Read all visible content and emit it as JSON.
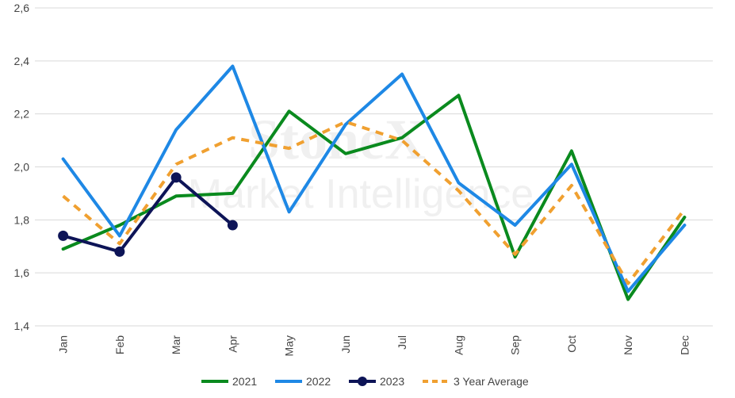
{
  "watermark": {
    "brand": "StoneX",
    "tagline": "Market Intelligence"
  },
  "chart_data": {
    "type": "line",
    "categories": [
      "Jan",
      "Feb",
      "Mar",
      "Apr",
      "May",
      "Jun",
      "Jul",
      "Aug",
      "Sep",
      "Oct",
      "Nov",
      "Dec"
    ],
    "ylim": [
      1.4,
      2.6
    ],
    "yticks": [
      "1,4",
      "1,6",
      "1,8",
      "2,0",
      "2,2",
      "2,4",
      "2,6"
    ],
    "grid": true,
    "legend_position": "bottom",
    "series": [
      {
        "name": "2021",
        "color": "#0a8a1e",
        "style": "solid",
        "markers": false,
        "values": [
          1.69,
          1.78,
          1.89,
          1.9,
          2.21,
          2.05,
          2.11,
          2.27,
          1.66,
          2.06,
          1.5,
          1.81
        ]
      },
      {
        "name": "2022",
        "color": "#1e88e5",
        "style": "solid",
        "markers": false,
        "values": [
          2.03,
          1.74,
          2.14,
          2.38,
          1.83,
          2.16,
          2.35,
          1.94,
          1.78,
          2.01,
          1.53,
          1.78
        ]
      },
      {
        "name": "2023",
        "color": "#0d1457",
        "style": "solid",
        "markers": true,
        "values": [
          1.74,
          1.68,
          1.96,
          1.78,
          null,
          null,
          null,
          null,
          null,
          null,
          null,
          null
        ]
      },
      {
        "name": "3 Year Average",
        "color": "#f0a030",
        "style": "dashed",
        "markers": false,
        "values": [
          1.89,
          1.71,
          2.01,
          2.11,
          2.07,
          2.17,
          2.1,
          1.91,
          1.67,
          1.93,
          1.56,
          1.84
        ]
      }
    ]
  }
}
